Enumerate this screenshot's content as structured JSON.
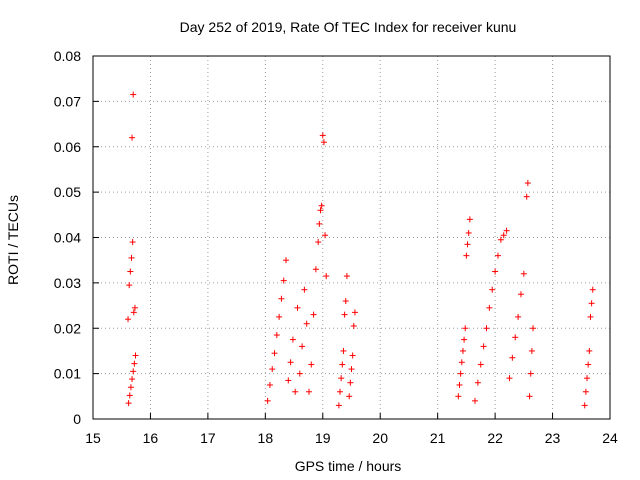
{
  "chart_data": {
    "type": "scatter",
    "title": "Day 252 of 2019, Rate Of TEC Index for receiver kunu",
    "xlabel": "GPS time / hours",
    "ylabel": "ROTI / TECUs",
    "xlim": [
      15,
      24
    ],
    "ylim": [
      0,
      0.08
    ],
    "xticks": [
      "15",
      "16",
      "17",
      "18",
      "19",
      "20",
      "21",
      "22",
      "23",
      "24"
    ],
    "yticks": [
      "0",
      "0.01",
      "0.02",
      "0.03",
      "0.04",
      "0.05",
      "0.06",
      "0.07",
      "0.08"
    ],
    "grid": true,
    "marker": "+",
    "color": "#ff0000",
    "series": [
      {
        "points": [
          [
            15.62,
            0.0035
          ],
          [
            15.64,
            0.0052
          ],
          [
            15.66,
            0.007
          ],
          [
            15.68,
            0.0088
          ],
          [
            15.7,
            0.0105
          ],
          [
            15.72,
            0.0122
          ],
          [
            15.74,
            0.014
          ],
          [
            15.61,
            0.022
          ],
          [
            15.63,
            0.0295
          ],
          [
            15.65,
            0.0325
          ],
          [
            15.67,
            0.0355
          ],
          [
            15.69,
            0.039
          ],
          [
            15.71,
            0.0235
          ],
          [
            15.73,
            0.0245
          ],
          [
            15.68,
            0.062
          ],
          [
            15.7,
            0.0715
          ],
          [
            18.04,
            0.004
          ],
          [
            18.08,
            0.0075
          ],
          [
            18.12,
            0.011
          ],
          [
            18.16,
            0.0145
          ],
          [
            18.2,
            0.0185
          ],
          [
            18.24,
            0.0225
          ],
          [
            18.28,
            0.0265
          ],
          [
            18.32,
            0.0305
          ],
          [
            18.36,
            0.035
          ],
          [
            18.4,
            0.0085
          ],
          [
            18.44,
            0.0125
          ],
          [
            18.48,
            0.0175
          ],
          [
            18.52,
            0.006
          ],
          [
            18.56,
            0.0245
          ],
          [
            18.6,
            0.01
          ],
          [
            18.64,
            0.016
          ],
          [
            18.68,
            0.0285
          ],
          [
            18.72,
            0.021
          ],
          [
            18.76,
            0.006
          ],
          [
            18.8,
            0.012
          ],
          [
            18.84,
            0.023
          ],
          [
            18.88,
            0.033
          ],
          [
            18.92,
            0.039
          ],
          [
            18.94,
            0.043
          ],
          [
            18.96,
            0.046
          ],
          [
            18.98,
            0.047
          ],
          [
            19.0,
            0.0625
          ],
          [
            19.02,
            0.061
          ],
          [
            19.04,
            0.0405
          ],
          [
            19.06,
            0.0315
          ],
          [
            19.28,
            0.003
          ],
          [
            19.3,
            0.006
          ],
          [
            19.32,
            0.009
          ],
          [
            19.34,
            0.012
          ],
          [
            19.36,
            0.015
          ],
          [
            19.38,
            0.023
          ],
          [
            19.4,
            0.026
          ],
          [
            19.42,
            0.0315
          ],
          [
            19.46,
            0.005
          ],
          [
            19.48,
            0.008
          ],
          [
            19.5,
            0.011
          ],
          [
            19.52,
            0.014
          ],
          [
            19.54,
            0.0205
          ],
          [
            19.56,
            0.0235
          ],
          [
            21.36,
            0.005
          ],
          [
            21.38,
            0.0075
          ],
          [
            21.4,
            0.01
          ],
          [
            21.42,
            0.0125
          ],
          [
            21.44,
            0.015
          ],
          [
            21.46,
            0.0175
          ],
          [
            21.48,
            0.02
          ],
          [
            21.5,
            0.036
          ],
          [
            21.52,
            0.0385
          ],
          [
            21.54,
            0.041
          ],
          [
            21.56,
            0.044
          ],
          [
            21.65,
            0.004
          ],
          [
            21.7,
            0.008
          ],
          [
            21.75,
            0.012
          ],
          [
            21.8,
            0.016
          ],
          [
            21.85,
            0.02
          ],
          [
            21.9,
            0.0245
          ],
          [
            21.95,
            0.0285
          ],
          [
            22.0,
            0.0325
          ],
          [
            22.05,
            0.036
          ],
          [
            22.1,
            0.0395
          ],
          [
            22.15,
            0.0405
          ],
          [
            22.2,
            0.0415
          ],
          [
            22.25,
            0.009
          ],
          [
            22.3,
            0.0135
          ],
          [
            22.35,
            0.018
          ],
          [
            22.4,
            0.0225
          ],
          [
            22.45,
            0.0275
          ],
          [
            22.5,
            0.032
          ],
          [
            22.55,
            0.049
          ],
          [
            22.57,
            0.052
          ],
          [
            22.6,
            0.005
          ],
          [
            22.62,
            0.01
          ],
          [
            22.64,
            0.015
          ],
          [
            22.66,
            0.02
          ],
          [
            23.56,
            0.003
          ],
          [
            23.58,
            0.006
          ],
          [
            23.6,
            0.009
          ],
          [
            23.62,
            0.012
          ],
          [
            23.64,
            0.015
          ],
          [
            23.66,
            0.0225
          ],
          [
            23.68,
            0.0255
          ],
          [
            23.7,
            0.0285
          ]
        ]
      }
    ]
  }
}
